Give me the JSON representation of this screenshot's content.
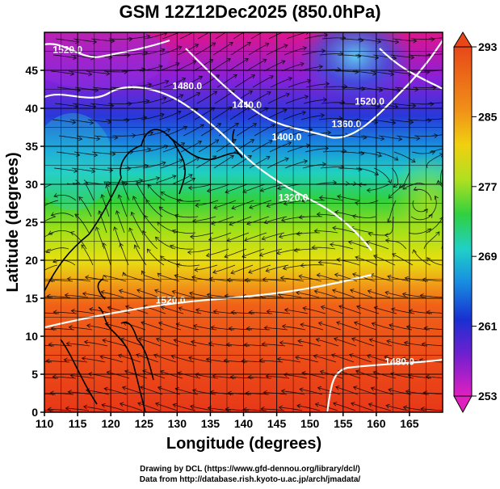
{
  "title": "GSM 12Z12Dec2025 (850.0hPa)",
  "x_axis": {
    "label": "Longitude (degrees)",
    "ticks": [
      110,
      115,
      120,
      125,
      130,
      135,
      140,
      145,
      150,
      155,
      160,
      165
    ],
    "range": [
      110,
      170
    ]
  },
  "y_axis": {
    "label": "Latitude  (degrees)",
    "ticks": [
      0,
      5,
      10,
      15,
      20,
      25,
      30,
      35,
      40,
      45
    ],
    "range": [
      0,
      50
    ]
  },
  "colorbar": {
    "ticks": [
      253,
      261,
      269,
      277,
      285,
      293
    ],
    "range": [
      253,
      293
    ]
  },
  "contours": [
    {
      "label": "1520.0",
      "lon": 113.5,
      "lat": 47.3
    },
    {
      "label": "1480.0",
      "lon": 131.5,
      "lat": 42.5
    },
    {
      "label": "1440.0",
      "lon": 140.5,
      "lat": 40.0
    },
    {
      "label": "1400.0",
      "lon": 146.5,
      "lat": 35.8
    },
    {
      "label": "1360.0",
      "lon": 155.5,
      "lat": 37.5
    },
    {
      "label": "1520.0",
      "lon": 159.0,
      "lat": 40.5
    },
    {
      "label": "1320.0",
      "lon": 147.5,
      "lat": 27.8
    },
    {
      "label": "1520.0",
      "lon": 129.0,
      "lat": 14.3
    },
    {
      "label": "1480.0",
      "lon": 163.5,
      "lat": 6.2
    }
  ],
  "credits": {
    "line1": "Drawing by DCL (https://www.gfd-dennou.org/library/dcl/)",
    "line2": "Data from http://database.rish.kyoto-u.ac.jp/arch/jmadata/"
  }
}
